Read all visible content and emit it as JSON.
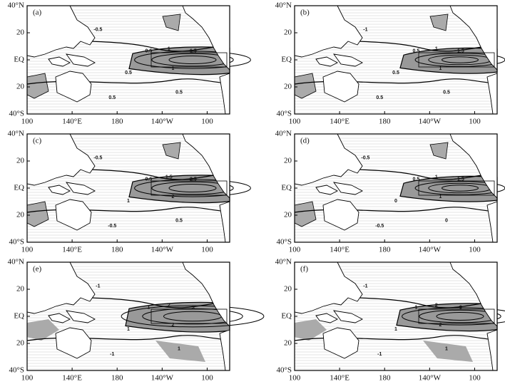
{
  "axes": {
    "x_tick_labels": [
      "100",
      "140°E",
      "180",
      "140°W",
      "100"
    ],
    "y_tick_labels": [
      "40°N",
      "20",
      "EQ",
      "20",
      "40°S"
    ]
  },
  "panels": [
    {
      "label": "(a)",
      "contour_labels": [
        "0.5",
        "1",
        "1.5",
        "1",
        "0.5",
        "0.5",
        "0.5",
        "-0.5"
      ]
    },
    {
      "label": "(b)",
      "contour_labels": [
        "0.5",
        "1",
        "1.5",
        "1",
        "0.5",
        "0.5",
        "0.5",
        "-1"
      ]
    },
    {
      "label": "(c)",
      "contour_labels": [
        "0.5",
        "1.5",
        "2.5",
        "2",
        "1",
        "-0.5",
        "0.5",
        "-0.5"
      ]
    },
    {
      "label": "(d)",
      "contour_labels": [
        "0.5",
        "1",
        "1.5",
        "1",
        "0",
        "-0.5",
        "0",
        "-0.5"
      ]
    },
    {
      "label": "(e)",
      "contour_labels": [
        "1",
        "2",
        "3",
        "2",
        "1",
        "-1",
        "1",
        "-1"
      ]
    },
    {
      "label": "(f)",
      "contour_labels": [
        "1",
        "2",
        "3",
        "2",
        "1",
        "-1",
        "1",
        "-1"
      ]
    }
  ]
}
